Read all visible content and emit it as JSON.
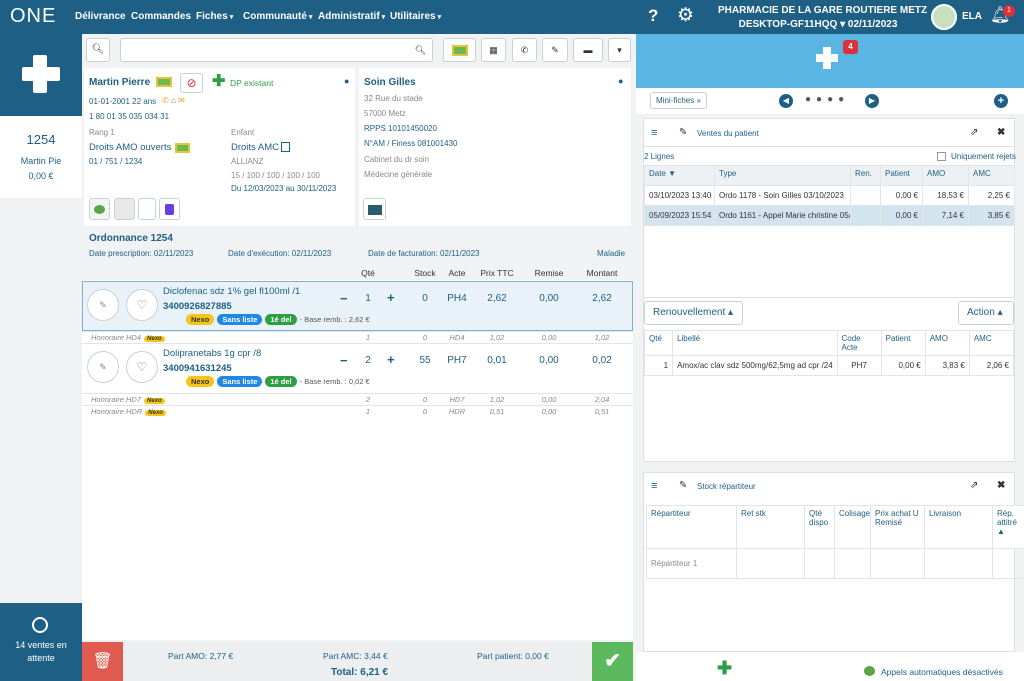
{
  "nav": {
    "logo": "ONE",
    "menu": [
      "Délivrance",
      "Commandes",
      "Fiches",
      "Communauté",
      "Administratif",
      "Utilitaires"
    ],
    "menu_dropdown": [
      false,
      false,
      true,
      true,
      true,
      true
    ],
    "pharmacy": "PHARMACIE DE LA GARE ROUTIERE METZ",
    "workstation": "DESKTOP-GF11HQQ",
    "date": "02/11/2023",
    "user": "ELA",
    "notifications": "1"
  },
  "sidebar": {
    "sale_number": "1254",
    "patient_short": "Martin Pie",
    "amount": "0,00 €",
    "waiting": "14 ventes en attente"
  },
  "patient": {
    "name": "Martin Pierre",
    "dp": "DP existant",
    "birth": "01-01-2001 22 ans",
    "nir": "1 80 01 35 035 034 31",
    "rank": "Rang 1",
    "amo": "Droits AMO ouverts",
    "amo_code": "01 / 751 / 1234",
    "quality": "Enfant",
    "amc": "Droits AMC",
    "insurer": "ALLIANZ",
    "amc_rates": "15 / 100 / 100 / 100 / 100",
    "period": "Du 12/03/2023 au 30/11/2023"
  },
  "doctor": {
    "name": "Soin Gilles",
    "address": "32 Rue du stade",
    "city": "57000 Metz",
    "rpps": "RPPS 10101450020",
    "finess": "N°AM / Finess 081001430",
    "office": "Cabinet du dr soin",
    "specialty": "Médecine générale"
  },
  "prescription": {
    "title": "Ordonnance 1254",
    "date_prescription": "Date prescription: 02/11/2023",
    "date_execution": "Date d'exécution: 02/11/2023",
    "date_billing": "Date de facturation: 02/11/2023",
    "regime": "Maladie",
    "columns": [
      "Qté",
      "Stock",
      "Acte",
      "Prix TTC",
      "Remise",
      "Montant"
    ],
    "lines": [
      {
        "name": "Diclofenac sdz 1% gel fl100ml /1",
        "code": "3400926827885",
        "tags": [
          "Nexo",
          "Sans liste",
          "1é del"
        ],
        "base": "- Base remb. : 2,62 €",
        "cells": [
          "1",
          "0",
          "PH4",
          "2,62",
          "0,00",
          "2,62"
        ],
        "fees": [
          {
            "label": "Honoraire HD4",
            "tag": "Nexo",
            "cells": [
              "1",
              "0",
              "HD4",
              "1,02",
              "0,00",
              "1,02"
            ]
          }
        ]
      },
      {
        "name": "Dolipranetabs 1g cpr /8",
        "code": "3400941631245",
        "tags": [
          "Nexo",
          "Sans liste",
          "1é del"
        ],
        "base": "- Base remb. : 0,02 €",
        "cells": [
          "2",
          "55",
          "PH7",
          "0,01",
          "0,00",
          "0,02"
        ],
        "fees": [
          {
            "label": "Honoraire HD7",
            "tag": "Nexo",
            "cells": [
              "2",
              "0",
              "HD7",
              "1,02",
              "0,00",
              "2,04"
            ]
          },
          {
            "label": "Honoraire HDR",
            "tag": "Nexo",
            "cells": [
              "1",
              "0",
              "HDR",
              "0,51",
              "0,00",
              "0,51"
            ]
          }
        ]
      }
    ],
    "part_amo": "Part AMO: 2,77 €",
    "part_amc": "Part AMC: 3,44 €",
    "part_patient": "Part patient: 0,00 €",
    "total": "Total: 6,21 €"
  },
  "right": {
    "badge": "4",
    "minifiches": "Mini-fiches »",
    "sales": {
      "title": "Ventes du patient",
      "count": "2 Lignes",
      "filter": "Uniquement rejets",
      "columns": [
        "Date ▼",
        "Type",
        "Ren.",
        "Patient",
        "AMO",
        "AMC"
      ],
      "rows": [
        {
          "date": "03/10/2023 13:40",
          "type": "Ordo 1178 - Soin Gilles 03/10/2023",
          "patient": "0,00 €",
          "amo": "18,53 €",
          "amc": "2,25 €"
        },
        {
          "date": "05/09/2023 15:54",
          "type": "Ordo 1161 - Appel Marie christine 05/0",
          "patient": "0,00 €",
          "amo": "7,14 €",
          "amc": "3,85 €"
        }
      ],
      "renew": "Renouvellement",
      "action": "Action",
      "detail_columns": [
        "Qté",
        "Libellé",
        "Code Acte",
        "Patient",
        "AMO",
        "AMC"
      ],
      "detail_rows": [
        [
          "1",
          "Amox/ac clav sdz 500mg/62,5mg ad cpr /24",
          "PH7",
          "0,00 €",
          "3,83 €",
          "2,06 €"
        ]
      ]
    },
    "stock": {
      "title": "Stock répartiteur",
      "columns": [
        "Répartiteur",
        "Ret stk",
        "Qté dispo",
        "Colisage",
        "Prix achat U Remisé",
        "Livraison",
        "Rép. attitré ▲"
      ],
      "rows": [
        [
          "Répartiteur 1"
        ]
      ]
    },
    "auto_calls": "Appels automatiques désactivés"
  }
}
